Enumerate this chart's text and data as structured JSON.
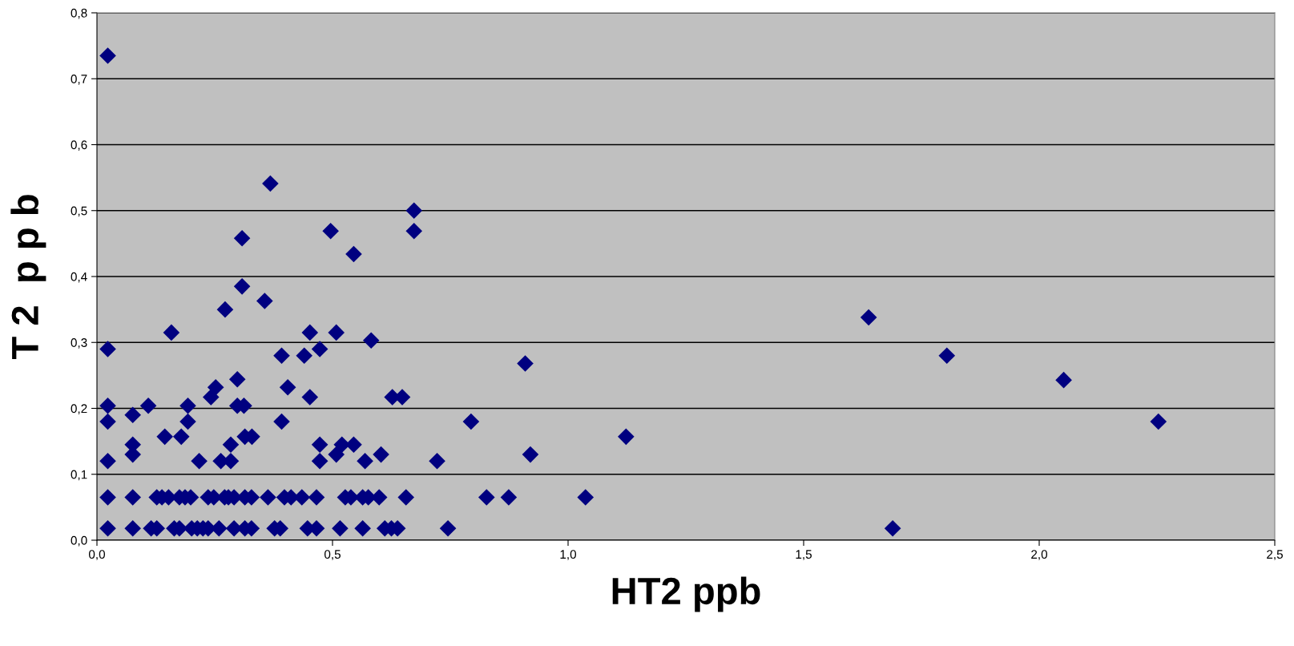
{
  "chart_data": {
    "type": "scatter",
    "xlabel": "HT2 ppb",
    "ylabel": "T 2  p p b",
    "xlim": [
      0,
      2.5
    ],
    "ylim": [
      0,
      0.8
    ],
    "xticks": [
      {
        "value": 0,
        "label": "0,0"
      },
      {
        "value": 0.5,
        "label": "0,5"
      },
      {
        "value": 1.0,
        "label": "1,0"
      },
      {
        "value": 1.5,
        "label": "1,5"
      },
      {
        "value": 2.0,
        "label": "2,0"
      },
      {
        "value": 2.5,
        "label": "2,5"
      }
    ],
    "yticks": [
      {
        "value": 0,
        "label": "0,0"
      },
      {
        "value": 0.1,
        "label": "0,1"
      },
      {
        "value": 0.2,
        "label": "0,2"
      },
      {
        "value": 0.3,
        "label": "0,3"
      },
      {
        "value": 0.4,
        "label": "0,4"
      },
      {
        "value": 0.5,
        "label": "0,5"
      },
      {
        "value": 0.6,
        "label": "0,6"
      },
      {
        "value": 0.7,
        "label": "0,7"
      },
      {
        "value": 0.8,
        "label": "0,8"
      }
    ],
    "grid": "y",
    "marker": "diamond",
    "legend": false,
    "series": [
      {
        "color": "#000080",
        "x": [
          0.023,
          0.023,
          0.023,
          0.023,
          0.023,
          0.076,
          0.076,
          0.076,
          0.109,
          0.144,
          0.158,
          0.193,
          0.193,
          0.179,
          0.217,
          0.242,
          0.252,
          0.272,
          0.263,
          0.284,
          0.284,
          0.298,
          0.298,
          0.312,
          0.308,
          0.308,
          0.314,
          0.329,
          0.368,
          0.356,
          0.392,
          0.405,
          0.392,
          0.44,
          0.452,
          0.452,
          0.473,
          0.473,
          0.473,
          0.496,
          0.508,
          0.508,
          0.52,
          0.545,
          0.545,
          0.569,
          0.582,
          0.603,
          0.627,
          0.648,
          0.673,
          0.673,
          0.722,
          0.794,
          0.92,
          0.909,
          0.827,
          0.874,
          1.037,
          0.745,
          1.123,
          1.638,
          1.804,
          2.052,
          2.253,
          1.689,
          0.023,
          0.076,
          0.127,
          0.138,
          0.152,
          0.175,
          0.187,
          0.199,
          0.236,
          0.248,
          0.271,
          0.279,
          0.291,
          0.314,
          0.328,
          0.363,
          0.398,
          0.412,
          0.435,
          0.466,
          0.527,
          0.539,
          0.564,
          0.576,
          0.599,
          0.656,
          0.023,
          0.076,
          0.115,
          0.127,
          0.164,
          0.175,
          0.201,
          0.213,
          0.225,
          0.236,
          0.259,
          0.291,
          0.314,
          0.328,
          0.377,
          0.389,
          0.447,
          0.466,
          0.516,
          0.564,
          0.611,
          0.625,
          0.638
        ],
        "values": [
          0.735,
          0.29,
          0.204,
          0.18,
          0.12,
          0.19,
          0.145,
          0.13,
          0.204,
          0.157,
          0.315,
          0.18,
          0.204,
          0.157,
          0.12,
          0.217,
          0.232,
          0.35,
          0.12,
          0.12,
          0.145,
          0.244,
          0.204,
          0.204,
          0.458,
          0.385,
          0.157,
          0.157,
          0.541,
          0.363,
          0.28,
          0.232,
          0.18,
          0.28,
          0.315,
          0.217,
          0.29,
          0.145,
          0.12,
          0.469,
          0.315,
          0.13,
          0.145,
          0.434,
          0.145,
          0.12,
          0.303,
          0.13,
          0.217,
          0.217,
          0.5,
          0.469,
          0.12,
          0.18,
          0.13,
          0.268,
          0.065,
          0.065,
          0.065,
          0.018,
          0.157,
          0.338,
          0.28,
          0.243,
          0.18,
          0.018,
          0.065,
          0.065,
          0.065,
          0.065,
          0.065,
          0.065,
          0.065,
          0.065,
          0.065,
          0.065,
          0.065,
          0.065,
          0.065,
          0.065,
          0.065,
          0.065,
          0.065,
          0.065,
          0.065,
          0.065,
          0.065,
          0.065,
          0.065,
          0.065,
          0.065,
          0.065,
          0.018,
          0.018,
          0.018,
          0.018,
          0.018,
          0.018,
          0.018,
          0.018,
          0.018,
          0.018,
          0.018,
          0.018,
          0.018,
          0.018,
          0.018,
          0.018,
          0.018,
          0.018,
          0.018,
          0.018,
          0.018,
          0.018,
          0.018
        ]
      }
    ]
  }
}
